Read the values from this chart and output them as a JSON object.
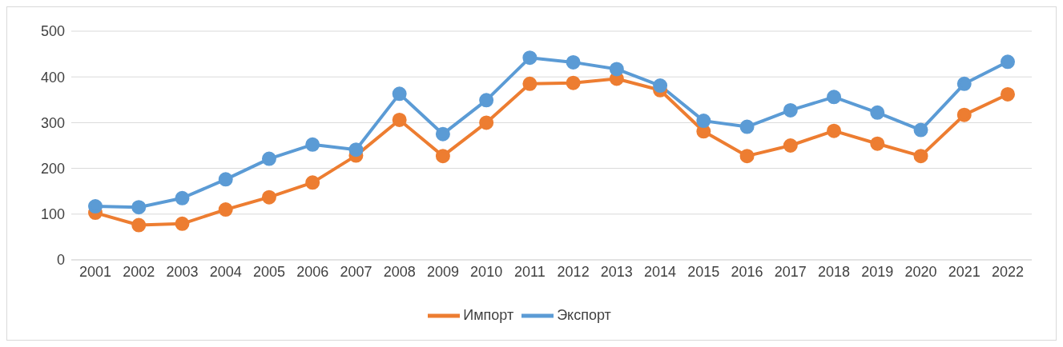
{
  "chart_data": {
    "type": "line",
    "categories": [
      "2001",
      "2002",
      "2003",
      "2004",
      "2005",
      "2006",
      "2007",
      "2008",
      "2009",
      "2010",
      "2011",
      "2012",
      "2013",
      "2014",
      "2015",
      "2016",
      "2017",
      "2018",
      "2019",
      "2020",
      "2021",
      "2022"
    ],
    "series": [
      {
        "name": "Экспорт",
        "color": "#5b9bd5",
        "values": [
          117,
          115,
          135,
          176,
          221,
          252,
          241,
          363,
          275,
          349,
          442,
          432,
          417,
          381,
          304,
          291,
          327,
          356,
          322,
          284,
          385,
          433
        ]
      },
      {
        "name": "Импорт",
        "color": "#ed7d31",
        "values": [
          103,
          76,
          79,
          110,
          137,
          169,
          228,
          306,
          227,
          300,
          385,
          387,
          396,
          371,
          281,
          227,
          250,
          282,
          254,
          227,
          317,
          362
        ]
      }
    ],
    "ylim": [
      0,
      500
    ],
    "yticks": [
      0,
      100,
      200,
      300,
      400,
      500
    ],
    "grid": "y",
    "legend": "bottom",
    "marker": "circle",
    "line_style": "solid"
  }
}
